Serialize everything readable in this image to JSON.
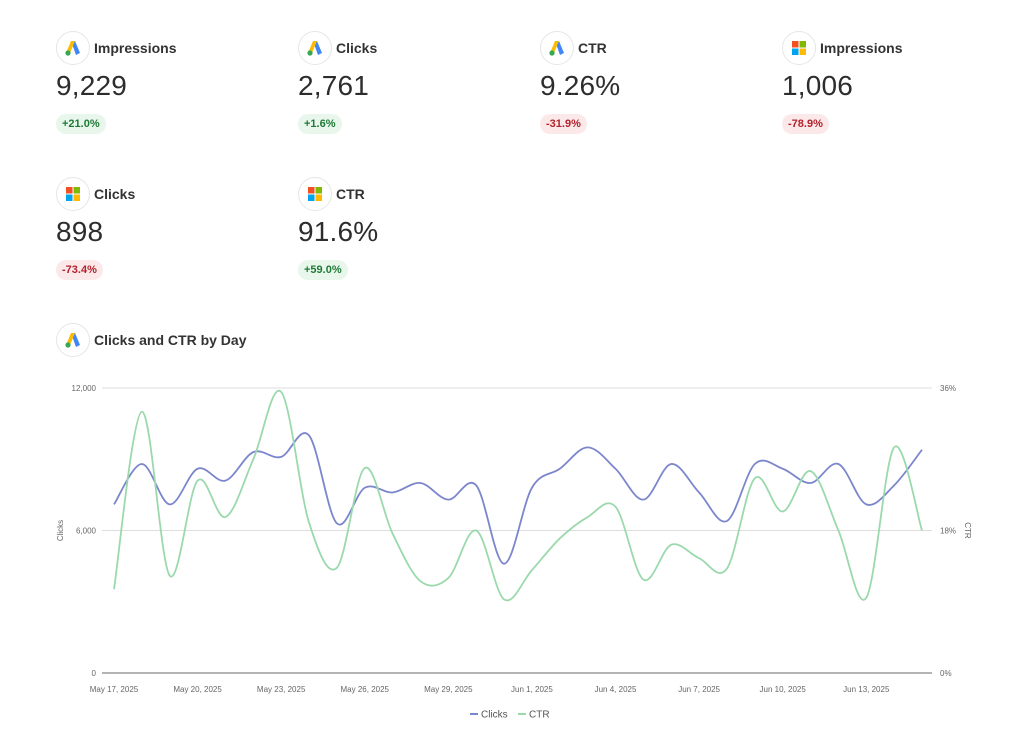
{
  "kpis": [
    {
      "icon": "google-ads-icon",
      "label": "Impressions",
      "value": "9,229",
      "delta": "+21.0%",
      "trend": "up"
    },
    {
      "icon": "google-ads-icon",
      "label": "Clicks",
      "value": "2,761",
      "delta": "+1.6%",
      "trend": "up"
    },
    {
      "icon": "google-ads-icon",
      "label": "CTR",
      "value": "9.26%",
      "delta": "-31.9%",
      "trend": "down"
    },
    {
      "icon": "microsoft-ads-icon",
      "label": "Impressions",
      "value": "1,006",
      "delta": "-78.9%",
      "trend": "down"
    },
    {
      "icon": "microsoft-ads-icon",
      "label": "Clicks",
      "value": "898",
      "delta": "-73.4%",
      "trend": "down"
    },
    {
      "icon": "microsoft-ads-icon",
      "label": "CTR",
      "value": "91.6%",
      "delta": "+59.0%",
      "trend": "up"
    }
  ],
  "colors": {
    "clicks": "#7b86cc",
    "ctr": "#9bd9ad",
    "grid": "#dddddd",
    "axis": "#888888",
    "delta_up_bg": "#e8f6ec",
    "delta_up_text": "#1f7a36",
    "delta_down_bg": "#fbe9ea",
    "delta_down_text": "#b3222c"
  },
  "section": {
    "icon": "google-ads-icon",
    "title": "Clicks and CTR by Day"
  },
  "chart_data": {
    "type": "line",
    "title": "Clicks and CTR by Day",
    "x_tick_labels": [
      "May 17, 2025",
      "May 20, 2025",
      "May 23, 2025",
      "May 26, 2025",
      "May 29, 2025",
      "Jun 1, 2025",
      "Jun 4, 2025",
      "Jun 7, 2025",
      "Jun 10, 2025",
      "Jun 13, 2025"
    ],
    "x": [
      "May 17, 2025",
      "May 18, 2025",
      "May 19, 2025",
      "May 20, 2025",
      "May 21, 2025",
      "May 22, 2025",
      "May 23, 2025",
      "May 24, 2025",
      "May 25, 2025",
      "May 26, 2025",
      "May 27, 2025",
      "May 28, 2025",
      "May 29, 2025",
      "May 30, 2025",
      "May 31, 2025",
      "Jun 1, 2025",
      "Jun 2, 2025",
      "Jun 3, 2025",
      "Jun 4, 2025",
      "Jun 5, 2025",
      "Jun 6, 2025",
      "Jun 7, 2025",
      "Jun 8, 2025",
      "Jun 9, 2025",
      "Jun 10, 2025",
      "Jun 11, 2025",
      "Jun 12, 2025",
      "Jun 13, 2025",
      "Jun 14, 2025",
      "Jun 15, 2025"
    ],
    "series": [
      {
        "name": "Clicks",
        "axis": "left",
        "values": [
          7100,
          8800,
          7100,
          8600,
          8100,
          9300,
          9100,
          10000,
          6300,
          7800,
          7600,
          8000,
          7300,
          7900,
          4600,
          7800,
          8600,
          9500,
          8600,
          7300,
          8800,
          7600,
          6400,
          8800,
          8600,
          8000,
          8800,
          7100,
          7900,
          9400
        ]
      },
      {
        "name": "CTR",
        "axis": "right",
        "values": [
          10.6,
          33.0,
          12.3,
          24.3,
          19.7,
          27.0,
          35.5,
          19.0,
          13.3,
          25.9,
          17.6,
          11.6,
          12.0,
          18.0,
          9.3,
          13.0,
          17.0,
          19.7,
          21.0,
          11.8,
          16.2,
          14.5,
          13.2,
          24.6,
          20.4,
          25.5,
          18.0,
          9.5,
          28.5,
          18.0
        ]
      }
    ],
    "y_left": {
      "label": "Clicks",
      "ticks": [
        "0",
        "6,000",
        "12,000"
      ],
      "range": [
        0,
        12000
      ]
    },
    "y_right": {
      "label": "CTR",
      "ticks": [
        "0%",
        "18%",
        "36%"
      ],
      "range": [
        0,
        36
      ]
    },
    "legend": {
      "position": "bottom-center",
      "items": [
        "Clicks",
        "CTR"
      ]
    },
    "grid": true
  }
}
